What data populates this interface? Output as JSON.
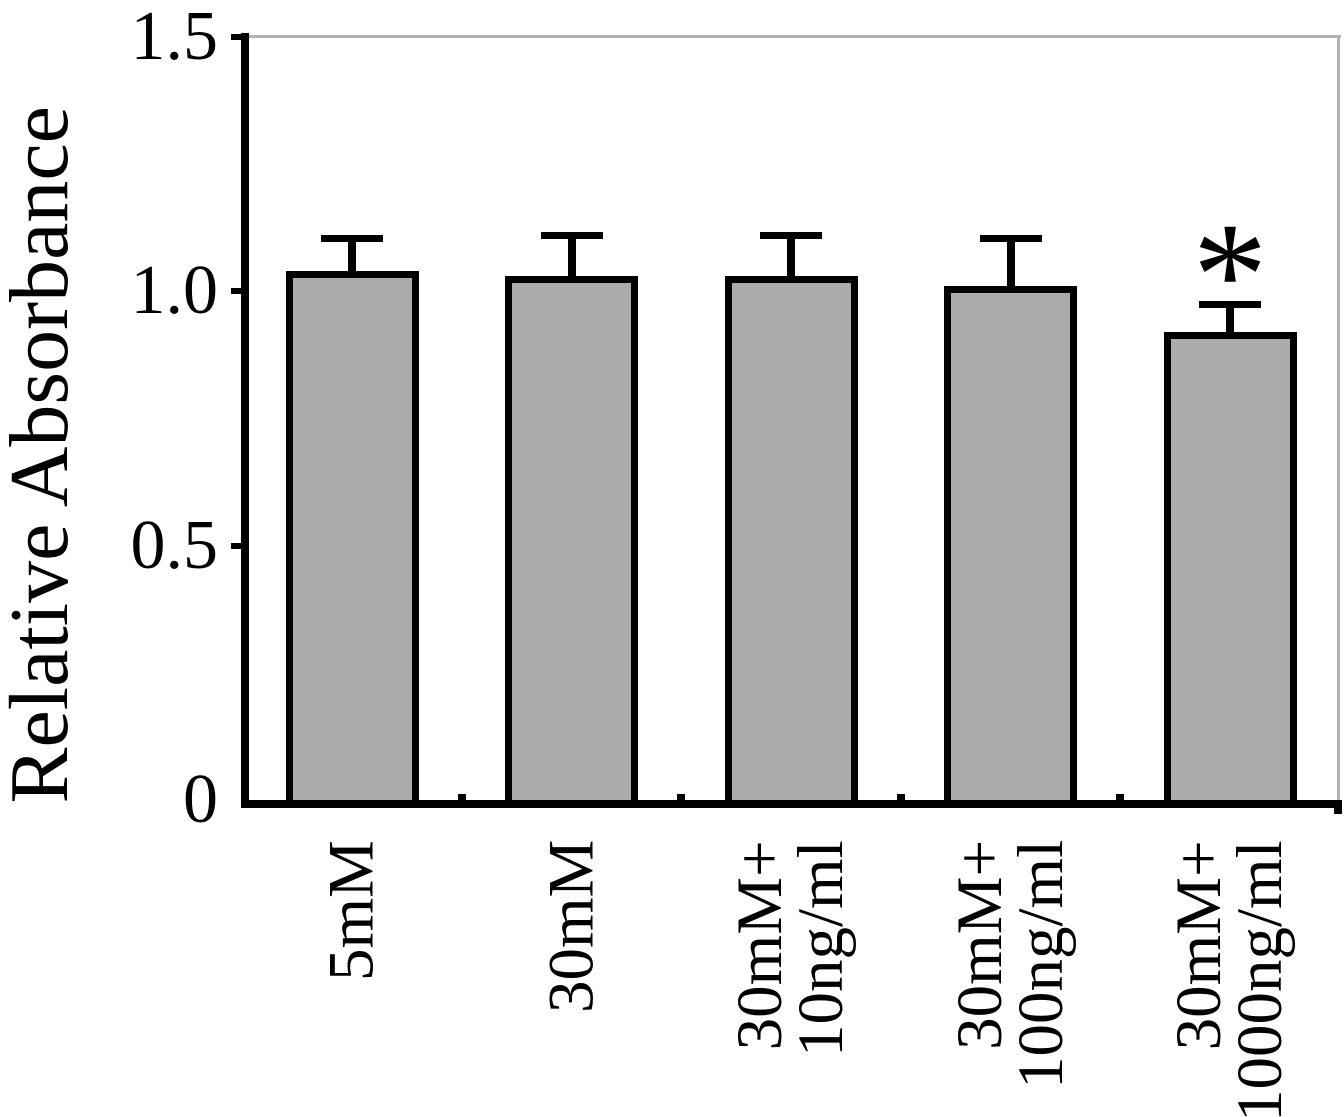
{
  "chart_data": {
    "type": "bar",
    "title": "",
    "xlabel": "",
    "ylabel": "Relative Absorbance",
    "categories": [
      "5mM",
      "30mM",
      "30mM+\n10ng/ml",
      "30mM+\n100ng/ml",
      "30mM+\n1000ng/ml"
    ],
    "values": [
      1.04,
      1.03,
      1.03,
      1.01,
      0.92
    ],
    "errors": [
      0.07,
      0.085,
      0.085,
      0.1,
      0.06
    ],
    "error_direction": "upper",
    "ylim": [
      0,
      1.5
    ],
    "yticks": [
      0,
      0.5,
      1.0,
      1.5
    ],
    "ytick_labels": [
      "0",
      "0.5",
      "1.0",
      "1.5"
    ],
    "annotations": [
      {
        "category_index": 4,
        "text": "*"
      }
    ],
    "bar_color": "#ababab",
    "bar_border_color": "#000000",
    "axis_color": "#000000",
    "frame_color": "#b2b2b2",
    "grid": false,
    "legend": false
  }
}
